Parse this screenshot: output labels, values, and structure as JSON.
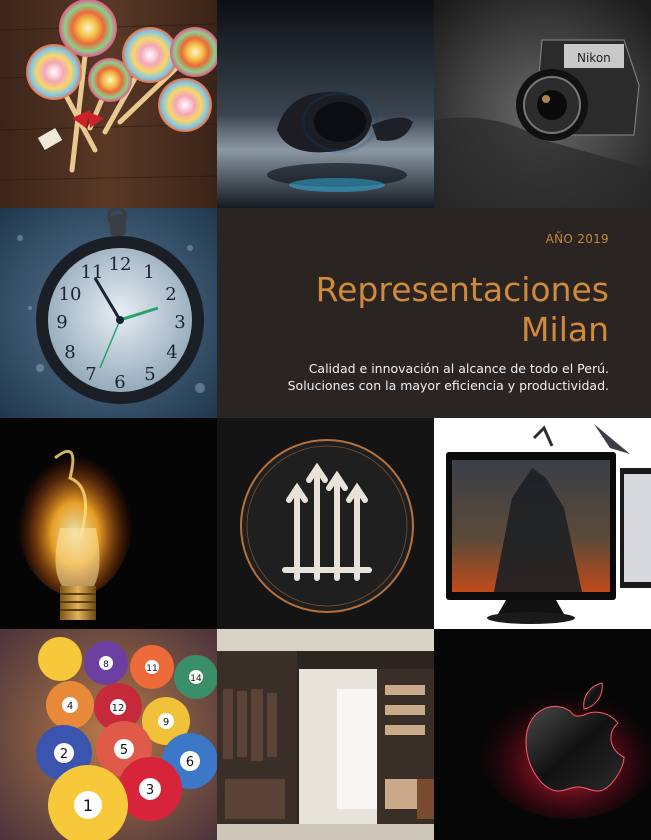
{
  "cover": {
    "year": "AÑO 2019",
    "title_line1": "Representaciones",
    "title_line2": "Milan",
    "tagline": "Calidad e innovación al alcance de todo el Perú. Soluciones con la mayor eficiencia y productividad."
  },
  "images": {
    "lollipops": "lollipops-photo",
    "speaker": "blue-speaker-photo",
    "camera": "nikon-camera-photo",
    "pocket_watch": "frozen-pocket-watch-photo",
    "bulb": "burning-light-bulb-photo",
    "emblem": "emblem-logo",
    "monitor": "monitor-display-photo",
    "billiard": "billiard-balls-photo",
    "closet": "walk-in-closet-photo",
    "apple": "glowing-apple-logo"
  },
  "camera_brand": "Nikon",
  "watch_numbers": [
    "12",
    "1",
    "2",
    "3",
    "4",
    "5",
    "6",
    "7",
    "8",
    "9",
    "10",
    "11"
  ],
  "billiard_numbers": [
    "1",
    "2",
    "3",
    "4",
    "5",
    "6",
    "8",
    "9",
    "11",
    "12",
    "14"
  ],
  "colors": {
    "accent": "#d08a3c",
    "panel": "#2a2422"
  }
}
